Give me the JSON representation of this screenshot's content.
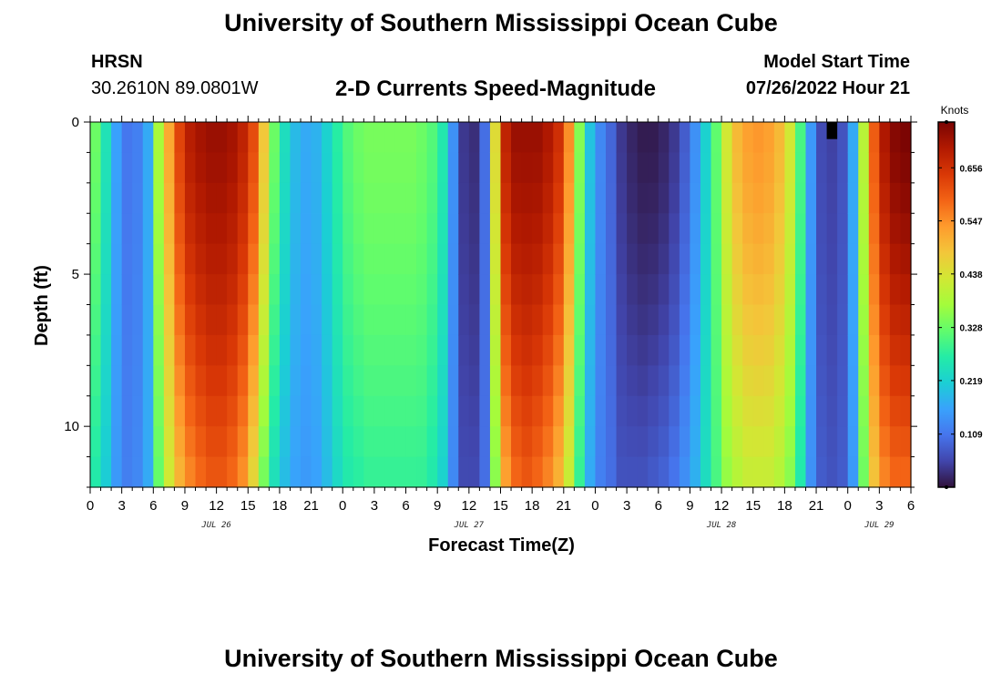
{
  "header": {
    "title": "University of Southern Mississippi Ocean Cube",
    "station_code": "HRSN",
    "station_coords": "30.2610N  89.0801W",
    "subtitle": "2-D Currents Speed-Magnitude",
    "model_start_label": "Model Start Time",
    "model_start_value": "07/26/2022 Hour 21"
  },
  "footer": {
    "title": "University of Southern Mississippi Ocean Cube"
  },
  "chart_data": {
    "type": "heatmap",
    "title": "2-D Currents Speed-Magnitude",
    "xlabel": "Forecast Time(Z)",
    "ylabel": "Depth (ft)",
    "x_range_hours": [
      0,
      78
    ],
    "x_step_hours": 1,
    "x_tick_labels": [
      "0",
      "3",
      "6",
      "9",
      "12",
      "15",
      "18",
      "21",
      "0",
      "3",
      "6",
      "9",
      "12",
      "15",
      "18",
      "21",
      "0",
      "3",
      "6",
      "9",
      "12",
      "15",
      "18",
      "21",
      "0",
      "3",
      "6"
    ],
    "date_labels": [
      {
        "text": "JUL 26",
        "hour": 12
      },
      {
        "text": "JUL 27",
        "hour": 36
      },
      {
        "text": "JUL 28",
        "hour": 60
      },
      {
        "text": "JUL 29",
        "hour": 75
      }
    ],
    "ylim": [
      0,
      12
    ],
    "y_ticks": [
      0,
      5,
      10
    ],
    "depth_levels_ft": [
      0,
      1,
      2,
      3,
      4,
      5,
      6,
      7,
      8,
      9,
      10,
      11,
      12
    ],
    "surface_speed_knots": [
      0.33,
      0.25,
      0.16,
      0.11,
      0.12,
      0.17,
      0.38,
      0.52,
      0.63,
      0.69,
      0.71,
      0.72,
      0.72,
      0.71,
      0.68,
      0.62,
      0.48,
      0.33,
      0.24,
      0.19,
      0.17,
      0.18,
      0.22,
      0.27,
      0.31,
      0.33,
      0.34,
      0.34,
      0.34,
      0.34,
      0.34,
      0.33,
      0.31,
      0.26,
      0.14,
      0.04,
      0.03,
      0.1,
      0.45,
      0.68,
      0.72,
      0.72,
      0.72,
      0.7,
      0.66,
      0.55,
      0.35,
      0.2,
      0.13,
      0.09,
      0.04,
      0.02,
      0.01,
      0.01,
      0.02,
      0.04,
      0.08,
      0.14,
      0.22,
      0.32,
      0.43,
      0.5,
      0.53,
      0.54,
      0.53,
      0.5,
      0.43,
      0.3,
      0.15,
      0.06,
      0.05,
      0.07,
      0.17,
      0.4,
      0.6,
      0.7,
      0.74,
      0.75
    ],
    "bottom_speed_knots": [
      0.26,
      0.21,
      0.15,
      0.12,
      0.13,
      0.17,
      0.32,
      0.42,
      0.5,
      0.55,
      0.58,
      0.6,
      0.6,
      0.58,
      0.54,
      0.45,
      0.33,
      0.24,
      0.19,
      0.16,
      0.15,
      0.16,
      0.19,
      0.23,
      0.26,
      0.27,
      0.28,
      0.28,
      0.28,
      0.28,
      0.28,
      0.28,
      0.26,
      0.22,
      0.13,
      0.06,
      0.06,
      0.1,
      0.35,
      0.52,
      0.58,
      0.6,
      0.58,
      0.55,
      0.5,
      0.41,
      0.28,
      0.17,
      0.12,
      0.1,
      0.07,
      0.07,
      0.07,
      0.08,
      0.09,
      0.11,
      0.14,
      0.18,
      0.24,
      0.3,
      0.36,
      0.39,
      0.41,
      0.41,
      0.41,
      0.39,
      0.35,
      0.26,
      0.14,
      0.08,
      0.07,
      0.08,
      0.15,
      0.33,
      0.48,
      0.55,
      0.58,
      0.58
    ],
    "colorbar": {
      "unit_label": "Knots",
      "range": [
        0,
        0.75
      ],
      "tick_values": [
        0.109,
        0.219,
        0.328,
        0.438,
        0.547,
        0.656
      ],
      "tick_labels": [
        "0.109",
        "0.219",
        "0.328",
        "0.438",
        "0.547",
        "0.656"
      ],
      "colormap": [
        "#30123b",
        "#4145ab",
        "#4675ed",
        "#39a2fc",
        "#1bcfd4",
        "#24eca6",
        "#61fc6c",
        "#a4fc3b",
        "#d1e834",
        "#f3c63a",
        "#fe9b2d",
        "#f36315",
        "#d93806",
        "#b11901",
        "#7a0403"
      ]
    },
    "missing_cell": {
      "hour": 70,
      "depth_range_ft": [
        0,
        0.5
      ]
    }
  }
}
